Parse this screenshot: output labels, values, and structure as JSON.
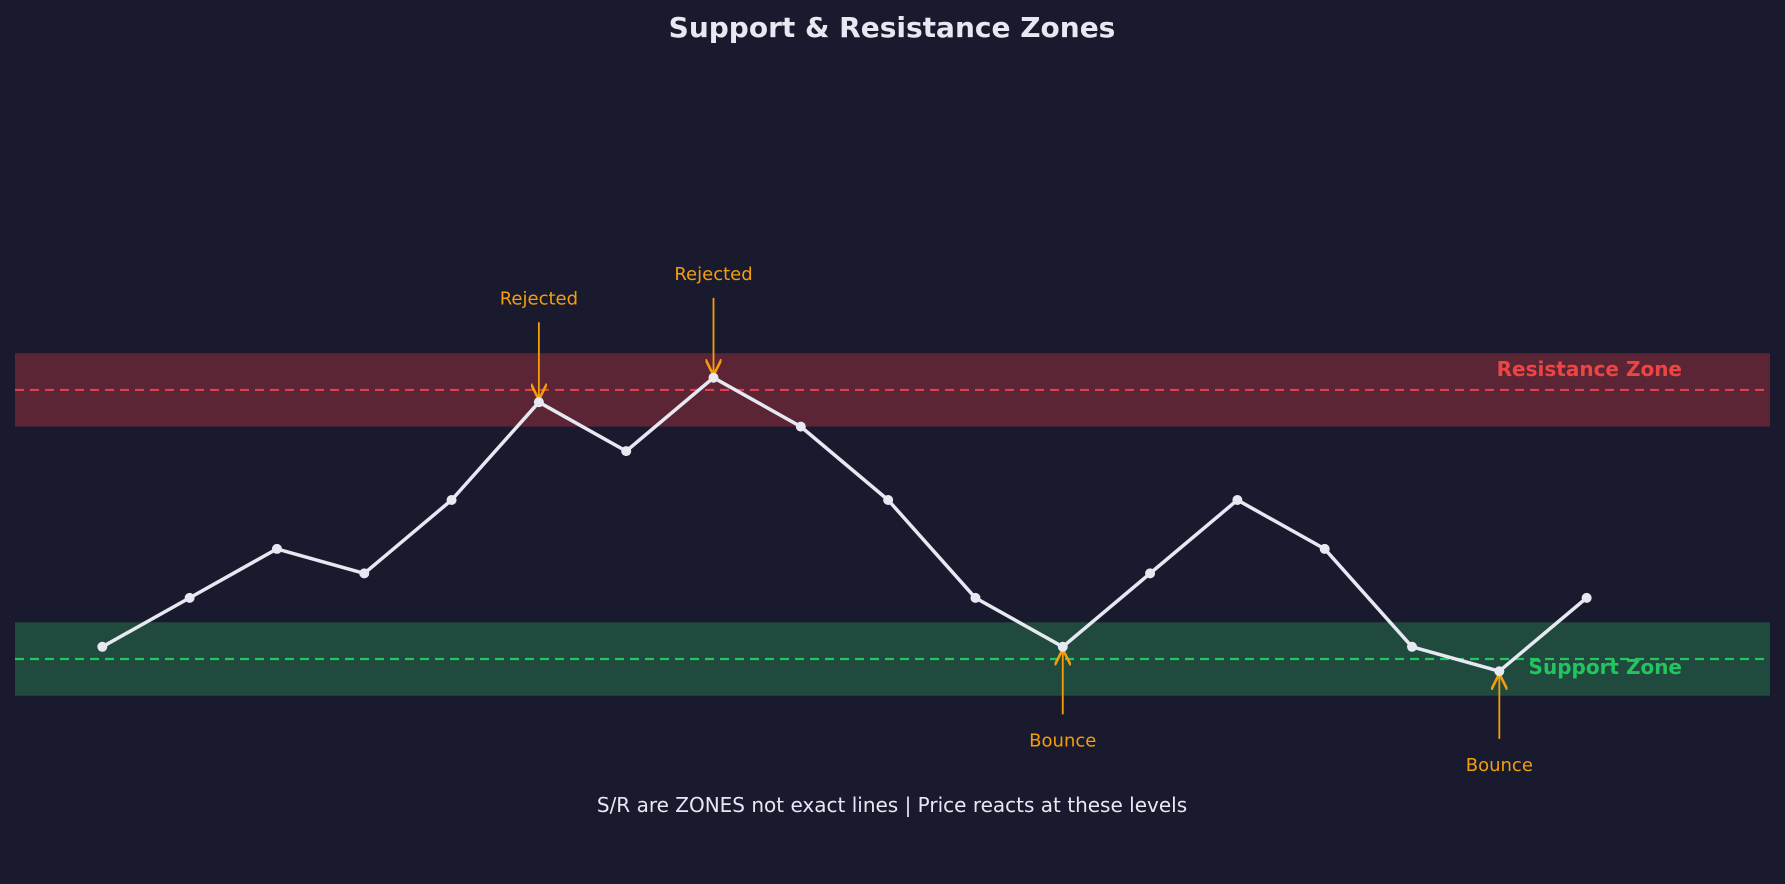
{
  "colors": {
    "background": "#1a1a2e",
    "price_line": "#e6e9f2",
    "resistance_fill": "#5c2535",
    "resistance_line": "#e0404c",
    "resistance_text": "#ef4444",
    "support_fill": "#1f4a3d",
    "support_line": "#22c55e",
    "support_text": "#22c55e",
    "annotation": "#f59e0b",
    "text": "#e6e9f2"
  },
  "chart_data": {
    "type": "line",
    "title": "Support & Resistance Zones",
    "xlabel": "",
    "ylabel": "",
    "grid": false,
    "axes_visible": false,
    "xlim": [
      -1,
      19.1
    ],
    "ylim": [
      83.9,
      114.6
    ],
    "series": [
      {
        "x": [
          0,
          1,
          2,
          3,
          4,
          5,
          6,
          7,
          8,
          9,
          10,
          11,
          12,
          13,
          14,
          15,
          16,
          17
        ],
        "values": [
          90,
          92,
          94,
          93,
          96,
          100,
          98,
          101,
          99,
          96,
          92,
          90,
          93,
          96,
          94,
          90,
          89,
          92
        ]
      }
    ],
    "zones": [
      {
        "name": "resistance",
        "label": "Resistance Zone",
        "low": 99,
        "high": 102,
        "level": 100.5
      },
      {
        "name": "support",
        "label": "Support Zone",
        "low": 88,
        "high": 91,
        "level": 89.5
      }
    ],
    "annotations": [
      {
        "name": "rejected-1",
        "text": "Rejected",
        "x": 5,
        "y": 100,
        "text_y": 104,
        "direction": "down"
      },
      {
        "name": "rejected-2",
        "text": "Rejected",
        "x": 7,
        "y": 101,
        "text_y": 105,
        "direction": "down"
      },
      {
        "name": "bounce-1",
        "text": "Bounce",
        "x": 11,
        "y": 90,
        "text_y": 86.5,
        "direction": "up"
      },
      {
        "name": "bounce-2",
        "text": "Bounce",
        "x": 16,
        "y": 89,
        "text_y": 85.5,
        "direction": "up"
      }
    ],
    "footnote": "S/R are ZONES not exact lines | Price reacts at these levels"
  }
}
